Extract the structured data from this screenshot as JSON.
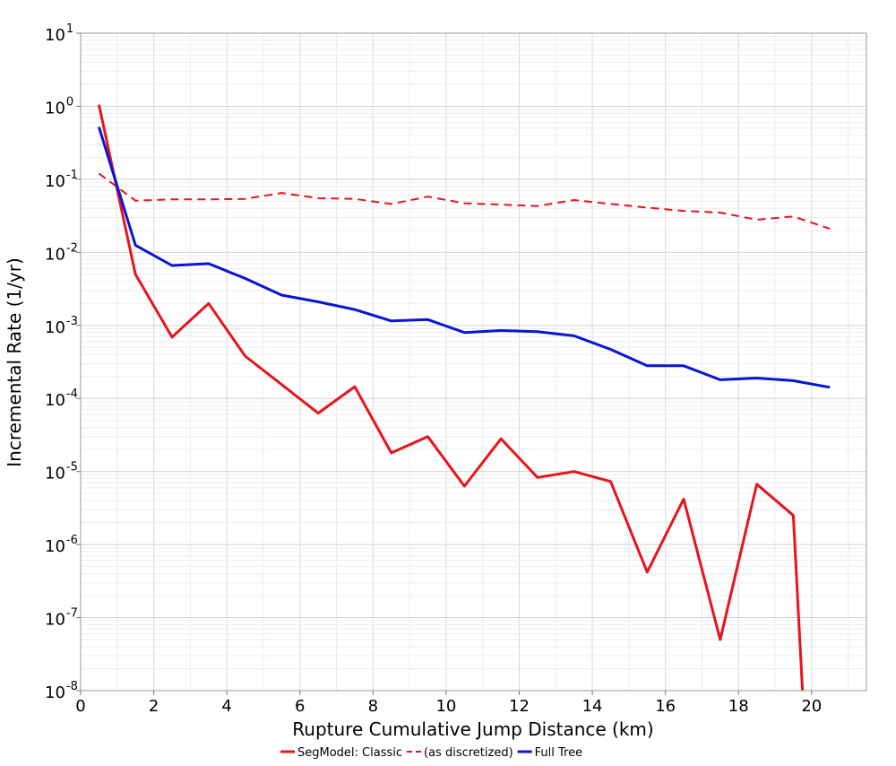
{
  "chart_data": {
    "type": "line",
    "title": "",
    "xlabel": "Rupture Cumulative Jump Distance (km)",
    "ylabel": "Incremental Rate (1/yr)",
    "xlim": [
      0,
      21.5
    ],
    "ylim": [
      1e-08,
      10
    ],
    "yscale": "log",
    "grid": true,
    "legend_position": "bottom-center",
    "x_ticks": [
      "0",
      "2",
      "4",
      "6",
      "8",
      "10",
      "12",
      "14",
      "16",
      "18",
      "20"
    ],
    "y_ticks": [
      {
        "base": "10",
        "exp": "1"
      },
      {
        "base": "10",
        "exp": "0"
      },
      {
        "base": "10",
        "exp": "-1"
      },
      {
        "base": "10",
        "exp": "-2"
      },
      {
        "base": "10",
        "exp": "-3"
      },
      {
        "base": "10",
        "exp": "-4"
      },
      {
        "base": "10",
        "exp": "-5"
      },
      {
        "base": "10",
        "exp": "-6"
      },
      {
        "base": "10",
        "exp": "-7"
      },
      {
        "base": "10",
        "exp": "-8"
      }
    ],
    "series": [
      {
        "name": "SegModel: Classic",
        "color": "#e8141c",
        "dash": "solid",
        "x": [
          0.5,
          1.5,
          2.5,
          3.5,
          4.5,
          5.5,
          6.5,
          7.5,
          8.5,
          9.5,
          10.5,
          11.5,
          12.5,
          13.5,
          14.5,
          15.5,
          16.5,
          17.5,
          18.5,
          19.5,
          19.75
        ],
        "y": [
          1.05,
          0.005,
          0.00069,
          0.002,
          0.00038,
          0.000155,
          6.3e-05,
          0.000145,
          1.8e-05,
          3e-05,
          6.3e-06,
          2.8e-05,
          8.3e-06,
          1e-05,
          7.3e-06,
          4.2e-07,
          4.2e-06,
          5e-08,
          6.7e-06,
          2.5e-06,
          1e-08
        ]
      },
      {
        "name": "(as discretized)",
        "color": "#e8141c",
        "dash": "dashed",
        "x": [
          0.5,
          1.5,
          2.5,
          3.5,
          4.5,
          5.5,
          6.5,
          7.5,
          8.5,
          9.5,
          10.5,
          11.5,
          12.5,
          13.5,
          14.5,
          15.5,
          16.5,
          17.5,
          18.5,
          19.5,
          20.5
        ],
        "y": [
          0.12,
          0.051,
          0.053,
          0.053,
          0.054,
          0.065,
          0.055,
          0.054,
          0.046,
          0.058,
          0.047,
          0.045,
          0.043,
          0.052,
          0.046,
          0.041,
          0.037,
          0.035,
          0.028,
          0.031,
          0.021
        ]
      },
      {
        "name": "Full Tree",
        "color": "#0a14d8",
        "dash": "solid",
        "x": [
          0.5,
          1.5,
          2.5,
          3.5,
          4.5,
          5.5,
          6.5,
          7.5,
          8.5,
          9.5,
          10.5,
          11.5,
          12.5,
          13.5,
          14.5,
          15.5,
          16.5,
          17.5,
          18.5,
          19.5,
          20.5
        ],
        "y": [
          0.52,
          0.0125,
          0.0066,
          0.007,
          0.0044,
          0.0026,
          0.0021,
          0.00165,
          0.00115,
          0.0012,
          0.0008,
          0.00085,
          0.00082,
          0.00072,
          0.00047,
          0.00028,
          0.00028,
          0.00018,
          0.00019,
          0.000175,
          0.000142
        ]
      }
    ]
  }
}
